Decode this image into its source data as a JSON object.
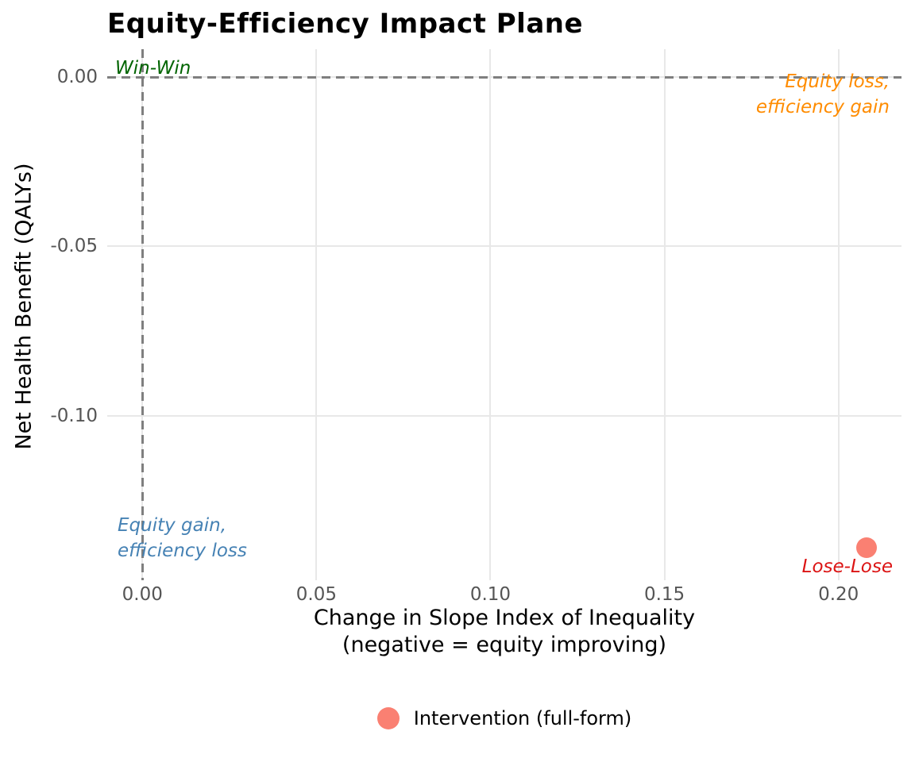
{
  "title": "Equity-Efficiency Impact Plane",
  "axes": {
    "x_title_line1": "Change in Slope Index of Inequality",
    "x_title_line2": "(negative = equity improving)",
    "y_title": "Net Health Benefit (QALYs)"
  },
  "quadrant_labels": {
    "win_win": {
      "text": "Win-Win",
      "color": "#006400"
    },
    "equity_loss": {
      "line1": "Equity loss,",
      "line2": "efficiency gain",
      "color": "#FF8C00"
    },
    "equity_gain": {
      "line1": "Equity gain,",
      "line2": "efficiency loss",
      "color": "#4682B4"
    },
    "lose_lose": {
      "text": "Lose-Lose",
      "color": "#DC1414"
    }
  },
  "legend": {
    "label": "Intervention (full-form)",
    "marker_color": "#FA8072"
  },
  "chart_data": {
    "type": "scatter",
    "title": "Equity-Efficiency Impact Plane",
    "xlabel": "Change in Slope Index of Inequality (negative = equity improving)",
    "ylabel": "Net Health Benefit (QALYs)",
    "xlim": [
      -0.0101,
      0.2181
    ],
    "ylim": [
      -0.1485,
      0.0082
    ],
    "x_ticks": [
      0,
      0.05,
      0.1,
      0.15,
      0.2
    ],
    "x_tick_labels": [
      "0.00",
      "0.05",
      "0.10",
      "0.15",
      "0.20"
    ],
    "y_ticks": [
      0,
      -0.05,
      -0.1
    ],
    "y_tick_labels": [
      "0.00",
      "-0.05",
      "-0.10"
    ],
    "grid": true,
    "gridline_color": "#E8E8E8",
    "background_color": "#FFFFFF",
    "reference_lines": [
      {
        "axis": "horizontal",
        "value": 0,
        "style": "dashed",
        "color": "#7F7F7F"
      },
      {
        "axis": "vertical",
        "value": 0,
        "style": "dashed",
        "color": "#7F7F7F"
      }
    ],
    "series": [
      {
        "name": "Intervention (full-form)",
        "marker": "circle",
        "color": "#FA8072",
        "points": [
          {
            "x": 0.208,
            "y": -0.139
          }
        ]
      }
    ],
    "annotations": [
      {
        "text": "Win-Win",
        "quadrant": "top-left",
        "color": "#006400"
      },
      {
        "text": "Equity loss, efficiency gain",
        "quadrant": "top-right",
        "color": "#FF8C00"
      },
      {
        "text": "Equity gain, efficiency loss",
        "quadrant": "bottom-left",
        "color": "#4682B4"
      },
      {
        "text": "Lose-Lose",
        "quadrant": "bottom-right",
        "color": "#DC1414"
      }
    ],
    "legend_position": "bottom-center"
  }
}
